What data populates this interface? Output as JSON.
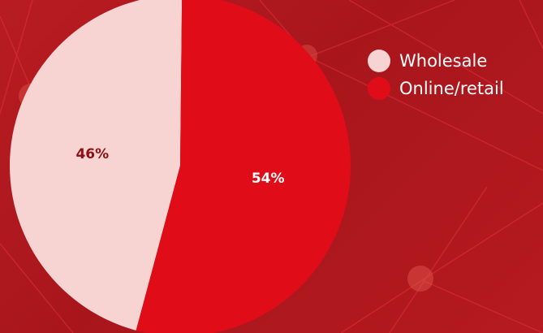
{
  "chart_data": {
    "type": "pie",
    "slices": [
      {
        "label": "Wholesale",
        "value": 46,
        "display": "46%",
        "color": "#f7d4d1",
        "label_color": "#8e0f14"
      },
      {
        "label": "Online/retail",
        "value": 54,
        "display": "54%",
        "color": "#e00d18",
        "label_color": "#ffffff"
      }
    ],
    "legend": {
      "placement": "top-right",
      "items": [
        {
          "label": "Wholesale",
          "color": "#f7d4d1"
        },
        {
          "label": "Online/retail",
          "color": "#e00d18"
        }
      ]
    },
    "title": ""
  },
  "colors": {
    "background": "#b0191f",
    "accent_line": "#e4313a",
    "glow_dot": "#e0544a"
  }
}
